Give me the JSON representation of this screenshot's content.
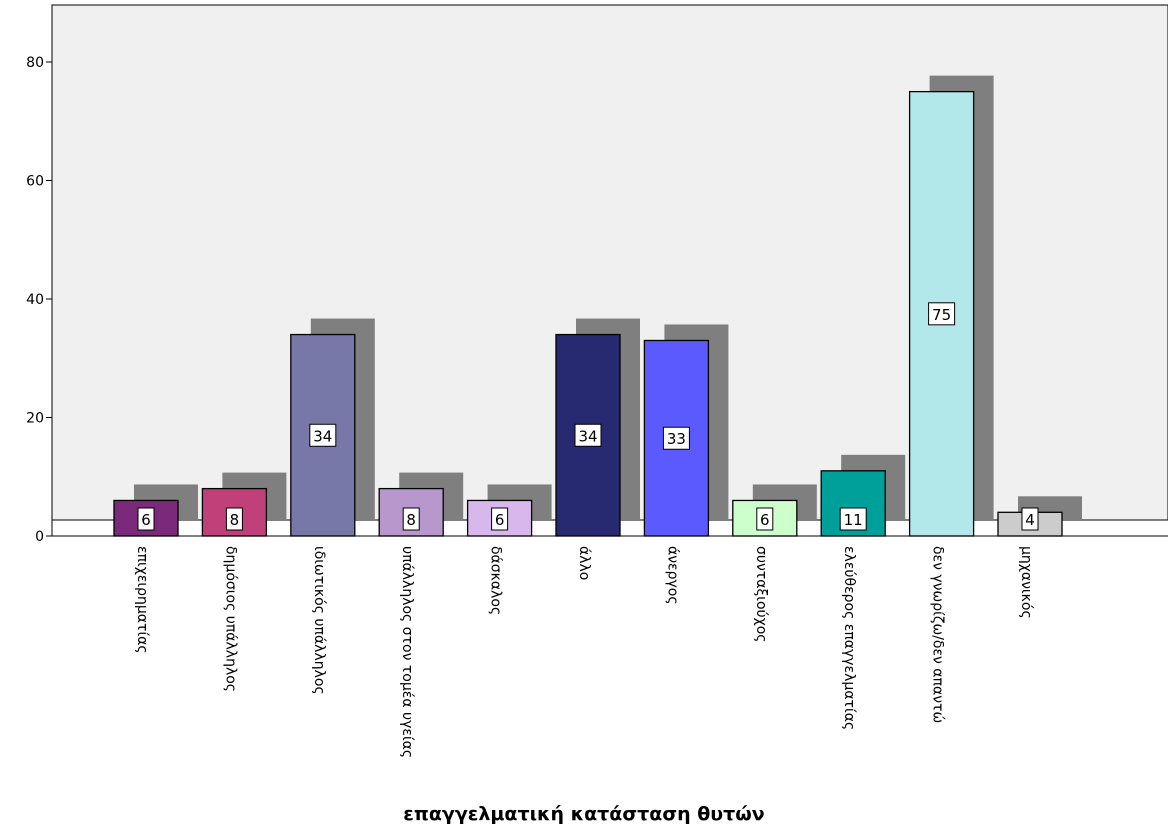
{
  "chart_data": {
    "type": "bar",
    "title": "",
    "xlabel": "επαγγελματική κατάσταση θυτών",
    "ylabel": "",
    "ylim": [
      0,
      88
    ],
    "yticks": [
      0,
      20,
      40,
      60,
      80
    ],
    "grid": false,
    "style": "3d-shadow",
    "categories": [
      "επιχειρηματίας",
      "δημόσιος υπάλληλος",
      "ιδιωτικός υπάλληλος",
      "υπάλληλος στον τομέα υγείας",
      "δάσκαλος",
      "άλλο",
      "άνεργος",
      "συνταξιούχος",
      "ελεύθερος επαγγελματίας",
      "δεν γνωρίζω/δεν απαντώ",
      "μηχανικός"
    ],
    "values": [
      6,
      8,
      34,
      8,
      6,
      34,
      33,
      6,
      11,
      75,
      4
    ],
    "colors": [
      "#7b2a7b",
      "#c0407a",
      "#7878a8",
      "#b898cc",
      "#d8b8ec",
      "#272a70",
      "#5a5aff",
      "#ccffcc",
      "#00a09a",
      "#b2e8ea",
      "#cccccc"
    ],
    "plot_background": "#f0f0f0",
    "shadow_color": "#7f7f7f"
  }
}
